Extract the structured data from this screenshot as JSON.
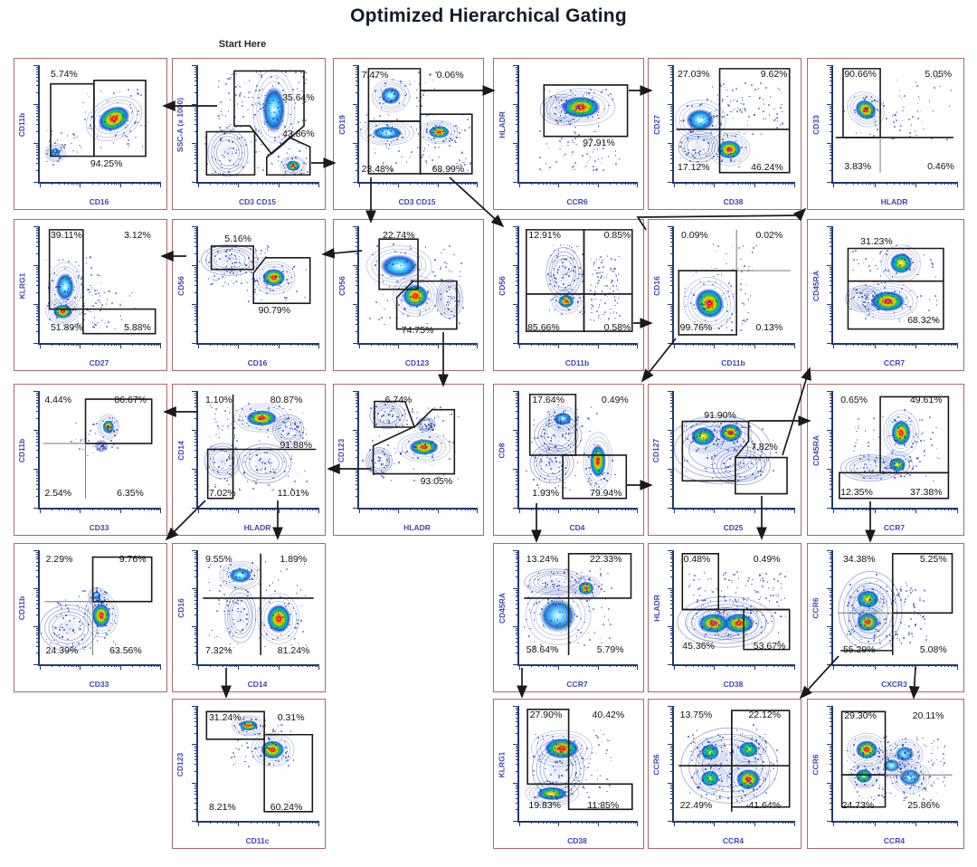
{
  "title": "Optimized Hierarchical Gating",
  "start_label": "Start Here",
  "colors": {
    "plot_border": "#b06767",
    "axis": "#203a6e",
    "axis_label": "#3d46b4",
    "gate": "#1a1a1a",
    "quadrant_line": "#777777",
    "arrow": "#1a1a1a",
    "title": "#141a2a"
  },
  "chart_data": {
    "type": "flow-cytometry contour plot grid (hierarchical gating scheme)",
    "title": "Optimized Hierarchical Gating",
    "start_annotation": "Start Here",
    "plots": [
      {
        "id": "r1c1",
        "x_axis": "CD16",
        "y_axis": "CD11b",
        "labels": [
          {
            "text": "5.74%",
            "x": 9,
            "y": 4
          },
          {
            "text": "94.25%",
            "x": 42,
            "y": 81
          }
        ]
      },
      {
        "id": "r1c2",
        "x_axis": "CD3 CD15",
        "y_axis": "SSC-A (x 1000)",
        "labels": [
          {
            "text": "35.64%",
            "x": 70,
            "y": 24
          },
          {
            "text": "43.86%",
            "x": 70,
            "y": 55
          }
        ]
      },
      {
        "id": "r1c3",
        "x_axis": "CD3 CD15",
        "y_axis": "CD19",
        "labels": [
          {
            "text": "7.47%",
            "x": 2,
            "y": 5
          },
          {
            "text": "0.06%",
            "x": 66,
            "y": 5
          },
          {
            "text": "23.48%",
            "x": 2,
            "y": 85
          },
          {
            "text": "68.99%",
            "x": 62,
            "y": 85
          }
        ]
      },
      {
        "id": "r1c4",
        "x_axis": "CCR6",
        "y_axis": "HLADR",
        "labels": [
          {
            "text": "97.91%",
            "x": 54,
            "y": 63
          }
        ]
      },
      {
        "id": "r1c5",
        "x_axis": "CD38",
        "y_axis": "CD27",
        "labels": [
          {
            "text": "27.03%",
            "x": 3,
            "y": 4
          },
          {
            "text": "9.62%",
            "x": 72,
            "y": 4
          },
          {
            "text": "17.12%",
            "x": 3,
            "y": 84
          },
          {
            "text": "46.24%",
            "x": 64,
            "y": 84
          }
        ]
      },
      {
        "id": "r1c6",
        "x_axis": "HLADR",
        "y_axis": "CD33",
        "labels": [
          {
            "text": "90.66%",
            "x": 9,
            "y": 4
          },
          {
            "text": "5.05%",
            "x": 74,
            "y": 4
          },
          {
            "text": "3.83%",
            "x": 9,
            "y": 83
          },
          {
            "text": "0.46%",
            "x": 76,
            "y": 83
          }
        ]
      },
      {
        "id": "r2c1",
        "x_axis": "CD27",
        "y_axis": "KLRG1",
        "labels": [
          {
            "text": "39.11%",
            "x": 9,
            "y": 4
          },
          {
            "text": "3.12%",
            "x": 70,
            "y": 4
          },
          {
            "text": "51.89%",
            "x": 9,
            "y": 83
          },
          {
            "text": "5.88%",
            "x": 70,
            "y": 83
          }
        ]
      },
      {
        "id": "r2c2",
        "x_axis": "CD16",
        "y_axis": "CD56",
        "labels": [
          {
            "text": "5.16%",
            "x": 22,
            "y": 7
          },
          {
            "text": "90.79%",
            "x": 50,
            "y": 68
          }
        ]
      },
      {
        "id": "r2c3",
        "x_axis": "CD123",
        "y_axis": "CD56",
        "labels": [
          {
            "text": "22.74%",
            "x": 20,
            "y": 4
          },
          {
            "text": "74.75%",
            "x": 36,
            "y": 85
          }
        ]
      },
      {
        "id": "r2c4",
        "x_axis": "CD11b",
        "y_axis": "CD56",
        "labels": [
          {
            "text": "12.91%",
            "x": 8,
            "y": 4
          },
          {
            "text": "0.85%",
            "x": 72,
            "y": 4
          },
          {
            "text": "85.66%",
            "x": 7,
            "y": 83
          },
          {
            "text": "0.58%",
            "x": 72,
            "y": 83
          }
        ]
      },
      {
        "id": "r2c5",
        "x_axis": "CD11b",
        "y_axis": "CD16",
        "labels": [
          {
            "text": "0.09%",
            "x": 6,
            "y": 4
          },
          {
            "text": "0.02%",
            "x": 68,
            "y": 4
          },
          {
            "text": "99.76%",
            "x": 5,
            "y": 83
          },
          {
            "text": "0.13%",
            "x": 68,
            "y": 83
          }
        ]
      },
      {
        "id": "r2c6",
        "x_axis": "CCR7",
        "y_axis": "CD45RA",
        "labels": [
          {
            "text": "31.23%",
            "x": 22,
            "y": 9
          },
          {
            "text": "68.32%",
            "x": 60,
            "y": 77
          }
        ]
      },
      {
        "id": "r3c1",
        "x_axis": "CD33",
        "y_axis": "CD11b",
        "labels": [
          {
            "text": "4.44%",
            "x": 4,
            "y": 4
          },
          {
            "text": "86.67%",
            "x": 62,
            "y": 4
          },
          {
            "text": "2.54%",
            "x": 4,
            "y": 84
          },
          {
            "text": "6.35%",
            "x": 64,
            "y": 84
          }
        ]
      },
      {
        "id": "r3c2",
        "x_axis": "HLADR",
        "y_axis": "CD14",
        "labels": [
          {
            "text": "1.10%",
            "x": 6,
            "y": 4
          },
          {
            "text": "80.87%",
            "x": 60,
            "y": 4
          },
          {
            "text": "91.88%",
            "x": 68,
            "y": 43
          },
          {
            "text": "7.02%",
            "x": 9,
            "y": 84
          },
          {
            "text": "11.01%",
            "x": 66,
            "y": 84
          }
        ]
      },
      {
        "id": "r3c3",
        "x_axis": "HLADR",
        "y_axis": "CD123",
        "labels": [
          {
            "text": "6.74%",
            "x": 22,
            "y": 4
          },
          {
            "text": "93.05%",
            "x": 52,
            "y": 74
          }
        ]
      },
      {
        "id": "r3c4",
        "x_axis": "CD4",
        "y_axis": "CD8",
        "labels": [
          {
            "text": "17.64%",
            "x": 11,
            "y": 4
          },
          {
            "text": "0.49%",
            "x": 70,
            "y": 4
          },
          {
            "text": "1.93%",
            "x": 11,
            "y": 84
          },
          {
            "text": "79.94%",
            "x": 60,
            "y": 84
          }
        ]
      },
      {
        "id": "r3c5",
        "x_axis": "CD25",
        "y_axis": "CD127",
        "labels": [
          {
            "text": "91.90%",
            "x": 25,
            "y": 17
          },
          {
            "text": "7.82%",
            "x": 64,
            "y": 44
          }
        ]
      },
      {
        "id": "r3c6",
        "x_axis": "CCR7",
        "y_axis": "CD45RA",
        "labels": [
          {
            "text": "0.65%",
            "x": 6,
            "y": 4
          },
          {
            "text": "49.61%",
            "x": 62,
            "y": 4
          },
          {
            "text": "12.35%",
            "x": 6,
            "y": 83
          },
          {
            "text": "37.38%",
            "x": 62,
            "y": 83
          }
        ]
      },
      {
        "id": "r4c1",
        "x_axis": "CD33",
        "y_axis": "CD11b",
        "labels": [
          {
            "text": "2.29%",
            "x": 5,
            "y": 4
          },
          {
            "text": "9.76%",
            "x": 66,
            "y": 4
          },
          {
            "text": "24.39%",
            "x": 5,
            "y": 84
          },
          {
            "text": "63.56%",
            "x": 58,
            "y": 84
          }
        ]
      },
      {
        "id": "r4c2",
        "x_axis": "CD14",
        "y_axis": "CD16",
        "labels": [
          {
            "text": "9.55%",
            "x": 6,
            "y": 4
          },
          {
            "text": "1.89%",
            "x": 68,
            "y": 4
          },
          {
            "text": "7.32%",
            "x": 6,
            "y": 84
          },
          {
            "text": "81.24%",
            "x": 66,
            "y": 84
          }
        ]
      },
      {
        "id": "r4c4",
        "x_axis": "CCR7",
        "y_axis": "CD45RA",
        "labels": [
          {
            "text": "13.24%",
            "x": 6,
            "y": 4
          },
          {
            "text": "22.33%",
            "x": 60,
            "y": 4
          },
          {
            "text": "58.64%",
            "x": 6,
            "y": 83
          },
          {
            "text": "5.79%",
            "x": 66,
            "y": 83
          }
        ]
      },
      {
        "id": "r4c5",
        "x_axis": "CD38",
        "y_axis": "HLADR",
        "labels": [
          {
            "text": "0.48%",
            "x": 8,
            "y": 4
          },
          {
            "text": "0.49%",
            "x": 66,
            "y": 4
          },
          {
            "text": "45.36%",
            "x": 7,
            "y": 80
          },
          {
            "text": "53.67%",
            "x": 66,
            "y": 80
          }
        ]
      },
      {
        "id": "r4c6",
        "x_axis": "CXCR3",
        "y_axis": "CCR6",
        "labels": [
          {
            "text": "34.38%",
            "x": 8,
            "y": 4
          },
          {
            "text": "5.25%",
            "x": 70,
            "y": 4
          },
          {
            "text": "55.29%",
            "x": 8,
            "y": 83
          },
          {
            "text": "5.08%",
            "x": 70,
            "y": 83
          }
        ]
      },
      {
        "id": "r5c2",
        "x_axis": "CD11c",
        "y_axis": "CD123",
        "labels": [
          {
            "text": "31.24%",
            "x": 9,
            "y": 6
          },
          {
            "text": "0.31%",
            "x": 66,
            "y": 6
          },
          {
            "text": "8.21%",
            "x": 9,
            "y": 84
          },
          {
            "text": "60.24%",
            "x": 60,
            "y": 84
          }
        ]
      },
      {
        "id": "r5c4",
        "x_axis": "CD38",
        "y_axis": "KLRG1",
        "labels": [
          {
            "text": "27.90%",
            "x": 9,
            "y": 4
          },
          {
            "text": "40.42%",
            "x": 62,
            "y": 4
          },
          {
            "text": "19.83%",
            "x": 8,
            "y": 83
          },
          {
            "text": "11.85%",
            "x": 58,
            "y": 83
          }
        ]
      },
      {
        "id": "r5c5",
        "x_axis": "CCR4",
        "y_axis": "CCR6",
        "labels": [
          {
            "text": "13.75%",
            "x": 5,
            "y": 4
          },
          {
            "text": "22.12%",
            "x": 62,
            "y": 4
          },
          {
            "text": "22.49%",
            "x": 5,
            "y": 83
          },
          {
            "text": "41.64%",
            "x": 62,
            "y": 83
          }
        ]
      },
      {
        "id": "r5c6",
        "x_axis": "CCR4",
        "y_axis": "CCR6",
        "labels": [
          {
            "text": "29.30%",
            "x": 9,
            "y": 5
          },
          {
            "text": "20.11%",
            "x": 64,
            "y": 5
          },
          {
            "text": "24.73%",
            "x": 7,
            "y": 83
          },
          {
            "text": "25.86%",
            "x": 60,
            "y": 83
          }
        ]
      }
    ],
    "connections": [
      {
        "from": "r1c2",
        "to": "r1c1"
      },
      {
        "from": "r1c2",
        "to": "r1c3"
      },
      {
        "from": "r1c3",
        "to": "r1c4"
      },
      {
        "from": "r1c4",
        "to": "r1c5"
      },
      {
        "from": "r1c3",
        "to": "r2c3"
      },
      {
        "from": "r1c3",
        "to": "r2c4"
      },
      {
        "from": "r2c3",
        "to": "r2c2"
      },
      {
        "from": "r2c2",
        "to": "r2c1"
      },
      {
        "from": "r2c3",
        "to": "r3c3"
      },
      {
        "from": "r2c4",
        "to": "r2c5"
      },
      {
        "from": "r2c5",
        "to": "r3c4"
      },
      {
        "from": "r3c3",
        "to": "r3c2"
      },
      {
        "from": "r3c2",
        "to": "r3c1"
      },
      {
        "from": "r3c2",
        "to": "r4c1"
      },
      {
        "from": "r3c2",
        "to": "r4c2"
      },
      {
        "from": "r4c2",
        "to": "r5c2"
      },
      {
        "from": "r3c4",
        "to": "r4c4"
      },
      {
        "from": "r3c4",
        "to": "r3c5"
      },
      {
        "from": "r3c5",
        "to": "r3c6"
      },
      {
        "from": "r3c5",
        "to": "r2c6"
      },
      {
        "from": "r3c5",
        "to": "r4c5"
      },
      {
        "from": "r3c6",
        "to": "r4c6"
      },
      {
        "from": "r4c4",
        "to": "r5c4"
      },
      {
        "from": "r4c6",
        "to": "r5c5"
      },
      {
        "from": "r4c6",
        "to": "r5c6"
      },
      {
        "from": "r2c4",
        "to": "r1c6"
      }
    ]
  }
}
